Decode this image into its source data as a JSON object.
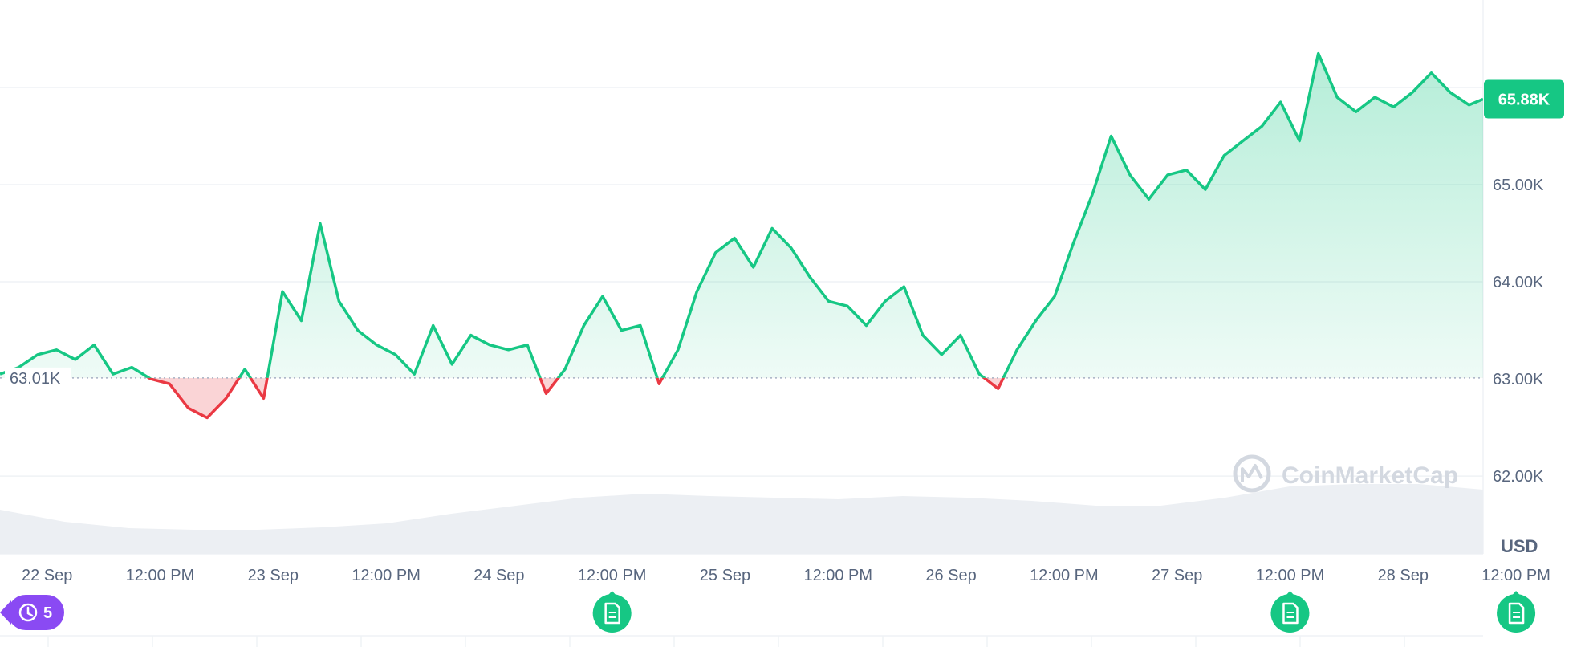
{
  "chart_data": {
    "type": "area",
    "currency_label": "USD",
    "y_ticks": [
      "62.00K",
      "63.00K",
      "64.00K",
      "65.00K"
    ],
    "ylim": [
      61.2,
      66.9
    ],
    "reference_label": "63.01K",
    "reference_value": 63.01,
    "current_price_label": "65.88K",
    "current_price": 65.88,
    "x_range_hours": [
      0,
      157.5
    ],
    "x_ticks": [
      {
        "label": "22 Sep",
        "hour": 5
      },
      {
        "label": "12:00 PM",
        "hour": 17
      },
      {
        "label": "23 Sep",
        "hour": 29
      },
      {
        "label": "12:00 PM",
        "hour": 41
      },
      {
        "label": "24 Sep",
        "hour": 53
      },
      {
        "label": "12:00 PM",
        "hour": 65
      },
      {
        "label": "25 Sep",
        "hour": 77
      },
      {
        "label": "12:00 PM",
        "hour": 89
      },
      {
        "label": "26 Sep",
        "hour": 101
      },
      {
        "label": "12:00 PM",
        "hour": 113
      },
      {
        "label": "27 Sep",
        "hour": 125
      },
      {
        "label": "12:00 PM",
        "hour": 137
      },
      {
        "label": "28 Sep",
        "hour": 149
      },
      {
        "label": "12:00 PM",
        "hour": 161
      }
    ],
    "series": [
      {
        "x_hours": [
          0,
          2,
          4,
          6,
          8,
          10,
          12,
          14,
          16,
          18,
          20,
          22,
          24,
          26,
          28,
          30,
          32,
          34,
          36,
          38,
          40,
          42,
          44,
          46,
          48,
          50,
          52,
          54,
          56,
          58,
          60,
          62,
          64,
          66,
          68,
          70,
          72,
          74,
          76,
          78,
          80,
          82,
          84,
          86,
          88,
          90,
          92,
          94,
          96,
          98,
          100,
          102,
          104,
          106,
          108,
          110,
          112,
          114,
          116,
          118,
          120,
          122,
          124,
          126,
          128,
          130,
          132,
          134,
          136,
          138,
          140,
          142,
          144,
          146,
          148,
          150,
          152,
          154,
          156,
          157.5
        ],
        "values": [
          63.05,
          63.12,
          63.25,
          63.3,
          63.2,
          63.35,
          63.05,
          63.12,
          63.0,
          62.95,
          62.7,
          62.6,
          62.8,
          63.1,
          62.8,
          63.9,
          63.6,
          64.6,
          63.8,
          63.5,
          63.35,
          63.25,
          63.05,
          63.55,
          63.15,
          63.45,
          63.35,
          63.3,
          63.35,
          62.85,
          63.1,
          63.55,
          63.85,
          63.5,
          63.55,
          62.95,
          63.3,
          63.9,
          64.3,
          64.45,
          64.15,
          64.55,
          64.35,
          64.05,
          63.8,
          63.75,
          63.55,
          63.8,
          63.95,
          63.45,
          63.25,
          63.45,
          63.05,
          62.9,
          63.3,
          63.6,
          63.85,
          64.4,
          64.9,
          65.5,
          65.1,
          64.85,
          65.1,
          65.15,
          64.95,
          65.3,
          65.45,
          65.6,
          65.85,
          65.45,
          66.35,
          65.9,
          65.75,
          65.9,
          65.8,
          65.95,
          66.15,
          65.95,
          65.82,
          65.88
        ]
      }
    ],
    "volume_level": [
      0.55,
      0.4,
      0.32,
      0.3,
      0.3,
      0.33,
      0.38,
      0.5,
      0.6,
      0.7,
      0.75,
      0.72,
      0.7,
      0.68,
      0.72,
      0.7,
      0.66,
      0.6,
      0.6,
      0.7,
      0.84,
      0.87,
      0.87,
      0.8
    ],
    "news_markers_hours": [
      65,
      137,
      161
    ],
    "history_badge_count": "5",
    "watermark": "CoinMarketCap",
    "colors": {
      "up": "#16c784",
      "down": "#ea3943",
      "up_fill_top": "#16c784",
      "down_fill": "#ea3943",
      "grid": "#eff2f5",
      "axis_text": "#58667e",
      "volume": "#eceff3",
      "history_badge": "#8a4af3"
    }
  }
}
